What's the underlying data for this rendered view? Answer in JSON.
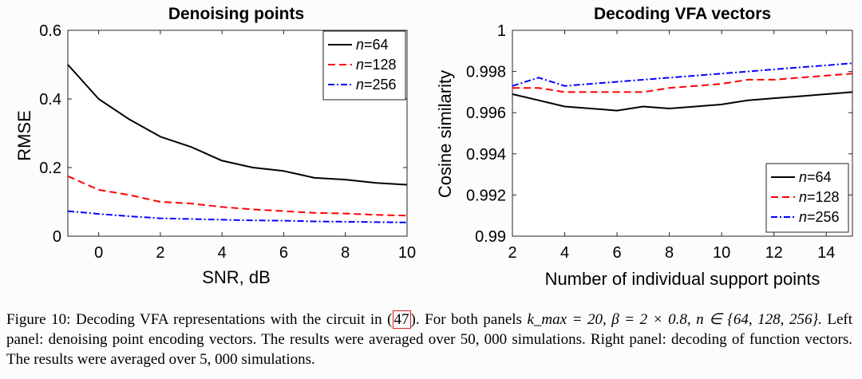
{
  "chart_data": [
    {
      "type": "line",
      "title": "Denoising points",
      "xlabel": "SNR, dB",
      "ylabel": "RMSE",
      "xlim": [
        -1,
        10
      ],
      "ylim": [
        0,
        0.6
      ],
      "xticks": [
        0,
        2,
        4,
        6,
        8,
        10
      ],
      "xtick_labels": [
        "0",
        "2",
        "4",
        "6",
        "8",
        "10"
      ],
      "yticks": [
        0,
        0.2,
        0.4,
        0.6
      ],
      "ytick_labels": [
        "0",
        "0.2",
        "0.4",
        "0.6"
      ],
      "grid": false,
      "legend_position": "top-right",
      "x": [
        -1,
        0,
        1,
        2,
        3,
        4,
        5,
        6,
        7,
        8,
        9,
        10
      ],
      "series": [
        {
          "name": "n=64",
          "color": "#000000",
          "style": "solid",
          "values": [
            0.5,
            0.4,
            0.34,
            0.29,
            0.26,
            0.22,
            0.2,
            0.19,
            0.17,
            0.165,
            0.155,
            0.15
          ]
        },
        {
          "name": "n=128",
          "color": "#ff0000",
          "style": "dashed",
          "values": [
            0.175,
            0.135,
            0.12,
            0.1,
            0.095,
            0.085,
            0.078,
            0.073,
            0.068,
            0.066,
            0.062,
            0.06
          ]
        },
        {
          "name": "n=256",
          "color": "#0000ff",
          "style": "dashdot",
          "values": [
            0.073,
            0.065,
            0.058,
            0.052,
            0.05,
            0.048,
            0.046,
            0.045,
            0.043,
            0.042,
            0.041,
            0.04
          ]
        }
      ]
    },
    {
      "type": "line",
      "title": "Decoding VFA vectors",
      "xlabel": "Number of individual support points",
      "ylabel": "Cosine similarity",
      "xlim": [
        2,
        15
      ],
      "ylim": [
        0.99,
        1
      ],
      "xticks": [
        2,
        4,
        6,
        8,
        10,
        12,
        14
      ],
      "xtick_labels": [
        "2",
        "4",
        "6",
        "8",
        "10",
        "12",
        "14"
      ],
      "yticks": [
        0.99,
        0.992,
        0.994,
        0.996,
        0.998,
        1
      ],
      "ytick_labels": [
        "0.99",
        "0.992",
        "0.994",
        "0.996",
        "0.998",
        "1"
      ],
      "grid": false,
      "legend_position": "bottom-right",
      "x": [
        2,
        3,
        4,
        5,
        6,
        7,
        8,
        9,
        10,
        11,
        12,
        13,
        14,
        15
      ],
      "series": [
        {
          "name": "n=64",
          "color": "#000000",
          "style": "solid",
          "values": [
            0.9969,
            0.9966,
            0.9963,
            0.9962,
            0.9961,
            0.9963,
            0.9962,
            0.9963,
            0.9964,
            0.9966,
            0.9967,
            0.9968,
            0.9969,
            0.997
          ]
        },
        {
          "name": "n=128",
          "color": "#ff0000",
          "style": "dashed",
          "values": [
            0.9972,
            0.9972,
            0.997,
            0.997,
            0.997,
            0.997,
            0.9972,
            0.9973,
            0.9974,
            0.9976,
            0.9976,
            0.9977,
            0.9978,
            0.9979
          ]
        },
        {
          "name": "n=256",
          "color": "#0000ff",
          "style": "dashdot",
          "values": [
            0.9973,
            0.9977,
            0.9973,
            0.9974,
            0.9975,
            0.9976,
            0.9977,
            0.9978,
            0.9979,
            0.998,
            0.9981,
            0.9982,
            0.9983,
            0.9984
          ]
        }
      ]
    }
  ],
  "legend": {
    "entries": [
      {
        "var": "n",
        "value": "=64"
      },
      {
        "var": "n",
        "value": "=128"
      },
      {
        "var": "n",
        "value": "=256"
      }
    ]
  },
  "caption": {
    "label": "Figure 10:",
    "text_1": "  Decoding VFA representations with the circuit in (",
    "ref": "47",
    "text_2": ").  For both panels ",
    "math_1": "k_max = 20, β = 2 × 0.8,",
    "math_2": "n ∈ {64, 128, 256}.",
    "text_3": "  Left panel: denoising point encoding vectors.  The results were averaged over ",
    "num_1": "50, 000",
    "text_4": " simulations. Right panel: decoding of function vectors. The results were averaged over ",
    "num_2": "5, 000",
    "text_5": " simulations."
  }
}
